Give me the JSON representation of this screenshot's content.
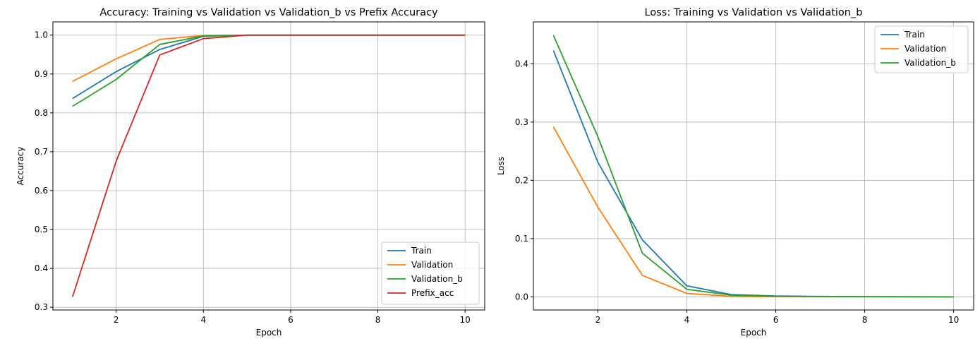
{
  "chart_data": [
    {
      "type": "line",
      "title": "Accuracy: Training vs Validation vs Validation_b vs Prefix Accuracy",
      "xlabel": "Epoch",
      "ylabel": "Accuracy",
      "xlim": [
        0.55,
        10.45
      ],
      "ylim": [
        0.293,
        1.034
      ],
      "xticks": [
        2,
        4,
        6,
        8,
        10
      ],
      "yticks": [
        0.3,
        0.4,
        0.5,
        0.6,
        0.7,
        0.8,
        0.9,
        1.0
      ],
      "ytick_labels": [
        "0.3",
        "0.4",
        "0.5",
        "0.6",
        "0.7",
        "0.8",
        "0.9",
        "1.0"
      ],
      "grid": true,
      "legend_position": "lower-right",
      "x": [
        1,
        2,
        3,
        4,
        5,
        6,
        7,
        8,
        9,
        10
      ],
      "series": [
        {
          "name": "Train",
          "color": "#1f77b4",
          "values": [
            0.837,
            0.906,
            0.963,
            0.997,
            1.0,
            1.0,
            1.0,
            1.0,
            1.0,
            1.0
          ]
        },
        {
          "name": "Validation",
          "color": "#ff7f0e",
          "values": [
            0.881,
            0.939,
            0.989,
            0.999,
            1.0,
            1.0,
            1.0,
            1.0,
            1.0,
            1.0
          ]
        },
        {
          "name": "Validation_b",
          "color": "#2ca02c",
          "values": [
            0.817,
            0.886,
            0.976,
            0.998,
            1.0,
            1.0,
            1.0,
            1.0,
            1.0,
            1.0
          ]
        },
        {
          "name": "Prefix_acc",
          "color": "#d62728",
          "values": [
            0.327,
            0.676,
            0.949,
            0.991,
            1.0,
            1.0,
            1.0,
            1.0,
            1.0,
            1.0
          ]
        }
      ]
    },
    {
      "type": "line",
      "title": "Loss: Training vs Validation vs Validation_b",
      "xlabel": "Epoch",
      "ylabel": "Loss",
      "xlim": [
        0.55,
        10.45
      ],
      "ylim": [
        -0.0225,
        0.472
      ],
      "xticks": [
        2,
        4,
        6,
        8,
        10
      ],
      "yticks": [
        0.0,
        0.1,
        0.2,
        0.3,
        0.4
      ],
      "ytick_labels": [
        "0.0",
        "0.1",
        "0.2",
        "0.3",
        "0.4"
      ],
      "grid": true,
      "legend_position": "upper-right",
      "x": [
        1,
        2,
        3,
        4,
        5,
        6,
        7,
        8,
        9,
        10
      ],
      "series": [
        {
          "name": "Train",
          "color": "#1f77b4",
          "values": [
            0.423,
            0.231,
            0.098,
            0.019,
            0.004,
            0.0015,
            0.0008,
            0.0004,
            0.0002,
            0.0001
          ]
        },
        {
          "name": "Validation",
          "color": "#ff7f0e",
          "values": [
            0.292,
            0.154,
            0.037,
            0.006,
            0.001,
            0.0005,
            0.0003,
            0.0002,
            0.0001,
            0.0001
          ]
        },
        {
          "name": "Validation_b",
          "color": "#2ca02c",
          "values": [
            0.449,
            0.275,
            0.075,
            0.013,
            0.003,
            0.001,
            0.0006,
            0.0003,
            0.0002,
            0.0001
          ]
        }
      ]
    }
  ]
}
